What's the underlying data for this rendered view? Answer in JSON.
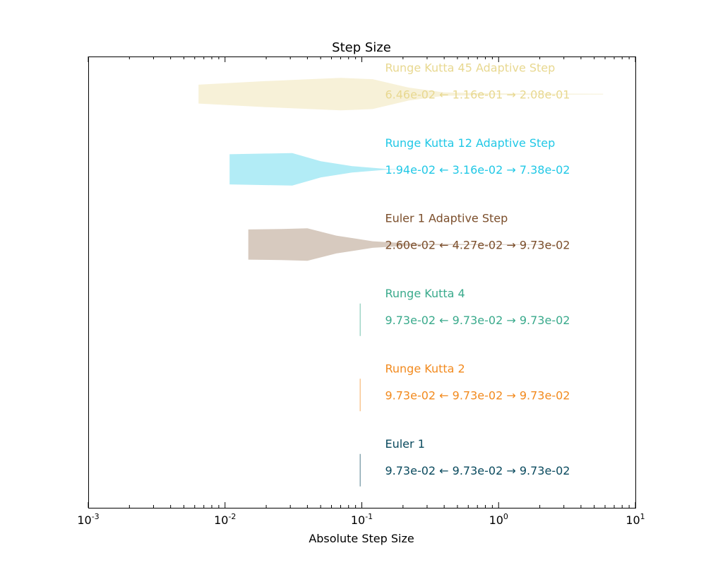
{
  "chart_data": {
    "type": "violin",
    "title": "Step Size",
    "xlabel": "Absolute Step Size",
    "ylabel": "",
    "xscale": "log",
    "xlim": [
      0.001,
      10
    ],
    "xticks": [
      {
        "value": 0.001,
        "base": "10",
        "exp": "-3"
      },
      {
        "value": 0.01,
        "base": "10",
        "exp": "-2"
      },
      {
        "value": 0.1,
        "base": "10",
        "exp": "-1"
      },
      {
        "value": 1,
        "base": "10",
        "exp": "0"
      },
      {
        "value": 10,
        "base": "10",
        "exp": "1"
      }
    ],
    "grid": false,
    "legend": "none",
    "left_arrow": "←",
    "right_arrow": "→",
    "series": [
      {
        "name": "Euler 1",
        "color": "#0a4a5e",
        "fill_opacity": 0.6,
        "min_label": "9.73e-02",
        "median_label": "9.73e-02",
        "max_label": "9.73e-02",
        "profile": [
          [
            0.0973,
            1.0
          ]
        ]
      },
      {
        "name": "Runge Kutta 2",
        "color": "#f28a1e",
        "fill_opacity": 0.6,
        "min_label": "9.73e-02",
        "median_label": "9.73e-02",
        "max_label": "9.73e-02",
        "profile": [
          [
            0.0973,
            1.0
          ]
        ]
      },
      {
        "name": "Runge Kutta 4",
        "color": "#3aaa8c",
        "fill_opacity": 0.6,
        "min_label": "9.73e-02",
        "median_label": "9.73e-02",
        "max_label": "9.73e-02",
        "profile": [
          [
            0.0973,
            1.0
          ]
        ]
      },
      {
        "name": "Euler 1 Adaptive Step",
        "color": "#7b4e2b",
        "fill_opacity": 0.3,
        "min_label": "2.60e-02",
        "median_label": "4.27e-02",
        "max_label": "9.73e-02",
        "profile": [
          [
            0.0148,
            0.93
          ],
          [
            0.026,
            0.96
          ],
          [
            0.04,
            1.0
          ],
          [
            0.065,
            0.55
          ],
          [
            0.12,
            0.2
          ],
          [
            0.25,
            0.04
          ],
          [
            2.8,
            0.01
          ]
        ]
      },
      {
        "name": "Runge Kutta 12 Adaptive Step",
        "color": "#21c8e6",
        "fill_opacity": 0.35,
        "min_label": "1.94e-02",
        "median_label": "3.16e-02",
        "max_label": "7.38e-02",
        "profile": [
          [
            0.0108,
            0.93
          ],
          [
            0.02,
            0.97
          ],
          [
            0.031,
            1.0
          ],
          [
            0.05,
            0.5
          ],
          [
            0.085,
            0.2
          ],
          [
            0.15,
            0.03
          ],
          [
            0.18,
            0.01
          ]
        ]
      },
      {
        "name": "Runge Kutta 45 Adaptive Step",
        "color": "#e8d890",
        "fill_opacity": 0.35,
        "min_label": "6.46e-02",
        "median_label": "1.16e-01",
        "max_label": "2.08e-01",
        "profile": [
          [
            0.0064,
            0.58
          ],
          [
            0.02,
            0.8
          ],
          [
            0.07,
            1.0
          ],
          [
            0.12,
            0.92
          ],
          [
            0.22,
            0.4
          ],
          [
            0.4,
            0.1
          ],
          [
            1.0,
            0.04
          ],
          [
            5.8,
            0.02
          ]
        ]
      }
    ]
  }
}
